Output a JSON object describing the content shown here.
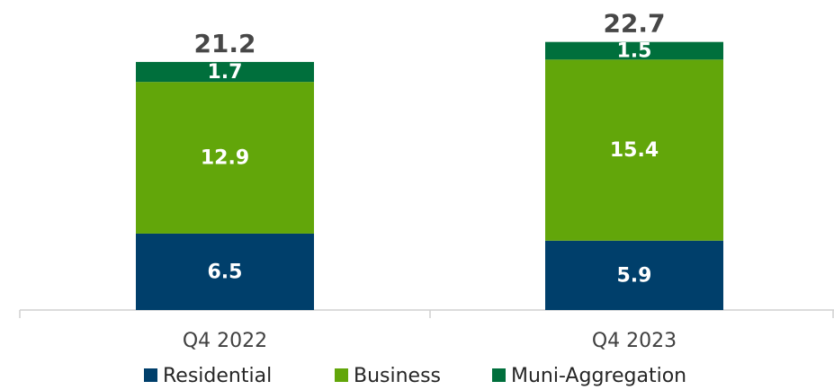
{
  "chart_data": {
    "type": "stacked_bar",
    "categories": [
      "Q4 2022",
      "Q4 2023"
    ],
    "series": [
      {
        "name": "Residential",
        "color": "#003f6b",
        "values": [
          6.5,
          5.9
        ]
      },
      {
        "name": "Business",
        "color": "#62a60a",
        "values": [
          12.9,
          15.4
        ]
      },
      {
        "name": "Muni-Aggregation",
        "color": "#006f3c",
        "values": [
          1.7,
          1.5
        ]
      }
    ],
    "totals": [
      21.2,
      22.7
    ]
  }
}
